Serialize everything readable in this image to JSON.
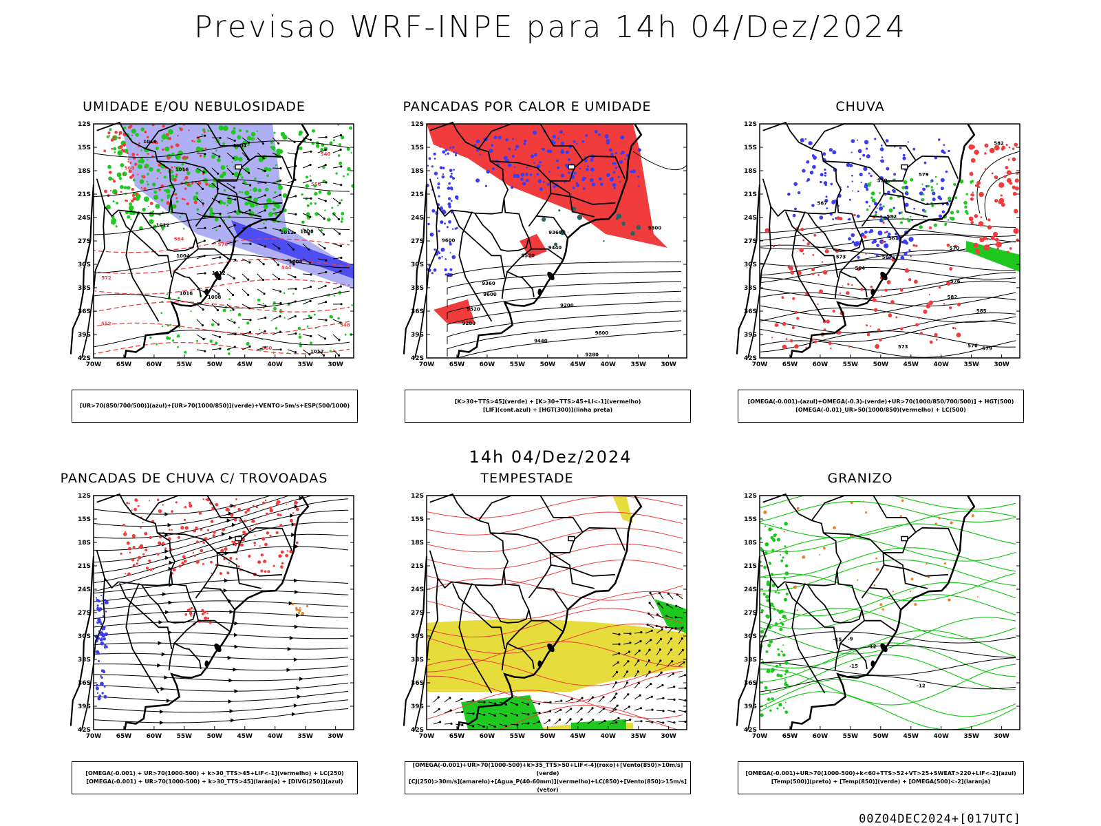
{
  "main_title": "Previsao WRF-INPE  para 14h 04/Dez/2024",
  "mid_title": "14h 04/Dez/2024",
  "footer": "00Z04DEC2024+[017UTC]",
  "lat_ticks": [
    "12S",
    "15S",
    "18S",
    "21S",
    "24S",
    "27S",
    "30S",
    "33S",
    "36S",
    "39S",
    "42S"
  ],
  "lon_ticks": [
    "70W",
    "65W",
    "60W",
    "55W",
    "50W",
    "45W",
    "40W",
    "35W",
    "30W"
  ],
  "colors": {
    "red": "#f03c3c",
    "green": "#1ec81e",
    "blue": "#3c3cf0",
    "lightblue": "#9b9bf0",
    "yellow": "#e6dc3c",
    "teal": "#286464",
    "orange": "#e6822d"
  },
  "panels": [
    {
      "title": "UMIDADE E/OU NEBULOSIDADE",
      "legend": [
        "[UR>70(850/700/500)](azul)+[UR>70(1000/850)](verde)+VENTO>5m/s+ESP(500/1000)"
      ]
    },
    {
      "title": "PANCADAS POR CALOR E UMIDADE",
      "legend": [
        "[K>30+TTS>45](verde) + [K>30+TTS>45+LI<-1](vermelho)",
        "[LIF](cont.azul) + [HGT(300)](linha preta)"
      ]
    },
    {
      "title": "CHUVA",
      "legend": [
        "[OMEGA(-0.001)-(azul)+OMEGA(-0.3)-(verde)+UR>70(1000/850/700/500)] + HGT(500)",
        "[OMEGA(-0.01)_UR>50(1000/850)(vermelho) + LC(500)"
      ]
    },
    {
      "title": "PANCADAS DE CHUVA C/ TROVOADAS",
      "legend": [
        "[OMEGA(-0.001) + UR>70(1000-500) + k>30_TTS>45+LIF<-1](vermelho) + LC(250)",
        "[OMEGA(-0.001) + UR>70(1000-500) + k>30_TTS>45](laranja) + [DIVG(250)](azul)"
      ]
    },
    {
      "title": "TEMPESTADE",
      "legend": [
        "[OMEGA(-0.001)+UR>70(1000-500)+k>35_TTS>50+LIF<-4](roxo)+[Vento(850)>10m/s](verde)",
        "[CJ(250)>30m/s](amarelo)+[Agua_P(40-60mm)](vermelho)+LC(850)+[Vento(850)>15m/s](vetor)"
      ]
    },
    {
      "title": "GRANIZO",
      "legend": [
        "[OMEGA(-0.001)+UR>70(1000-500)+k<60+TTS>52+VT>25+SWEAT>220+LIF<-2](azul)",
        "[Temp(500)](preto) + [Temp(850)](verde) + [OMEGA(500)<-2](laranja)"
      ]
    }
  ],
  "contour_labels": {
    "p1": [
      "1012",
      "1012",
      "1016",
      "1008",
      "1012",
      "1016",
      "1008",
      "1004",
      "1016",
      "1012",
      "1008",
      "1004",
      "576",
      "572",
      "568",
      "564",
      "560",
      "556",
      "552",
      "548",
      "544",
      "540"
    ],
    "p2": [
      "9600",
      "9520",
      "9440",
      "9600",
      "9520",
      "9440",
      "9360",
      "9280",
      "9200",
      "9360",
      "9280",
      "9800",
      "9600"
    ],
    "p3": [
      "582",
      "579",
      "576",
      "573",
      "570",
      "567",
      "564",
      "561",
      "576",
      "573",
      "570",
      "567",
      "579",
      "582",
      "585",
      "582"
    ],
    "p6": [
      "-12",
      "-15",
      "-15",
      "-12",
      "-9"
    ]
  }
}
